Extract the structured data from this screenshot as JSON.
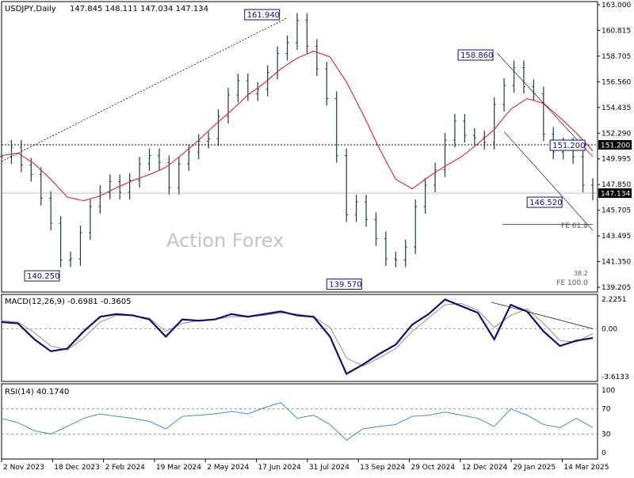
{
  "header": {
    "symbol_label": "USDJPY,Daily",
    "ohlc_label": "147.845 148.111 147.034 147.134"
  },
  "watermark": "Action Forex",
  "colors": {
    "candle": "#1a3a4a",
    "sma": "#e03030",
    "macd_line": "#10107a",
    "macd_signal": "#909090",
    "rsi_line": "#3a8fd0",
    "trendline": "#000000",
    "label_border": "#10107a",
    "background": "#ffffff"
  },
  "chart_data": [
    {
      "type": "line",
      "panel": "price",
      "title": "USDJPY,Daily",
      "ylim": [
        139.205,
        163.0
      ],
      "y_ticks": [
        "163.000",
        "160.815",
        "158.705",
        "156.560",
        "154.435",
        "152.290",
        "149.995",
        "147.850",
        "145.705",
        "143.495",
        "141.350",
        "139.205"
      ],
      "x_ticks": [
        "2 Nov 2023",
        "18 Dec 2023",
        "2 Feb 2024",
        "19 Mar 2024",
        "2 May 2024",
        "17 Jun 2024",
        "31 Jul 2024",
        "13 Sep 2024",
        "29 Oct 2024",
        "12 Dec 2024",
        "29 Jan 2025",
        "14 Mar 2025"
      ],
      "series": [
        {
          "style": "bars",
          "x": [
            0,
            6,
            12,
            18,
            24,
            30,
            36,
            42,
            48,
            54,
            60,
            66,
            72,
            78,
            84,
            90,
            96,
            102,
            108,
            114,
            120,
            126,
            132,
            138,
            144,
            150,
            156,
            162,
            168,
            174,
            180,
            186,
            192,
            198,
            204,
            210,
            216,
            222,
            228,
            234,
            240,
            246,
            252,
            258,
            264,
            270,
            276,
            282,
            288,
            294,
            300,
            306,
            312,
            318,
            324,
            330,
            336,
            342,
            348,
            354,
            360
          ],
          "values": [
            150.2,
            151.0,
            149.5,
            148.7,
            146.7,
            144.6,
            141.5,
            141.6,
            143.8,
            146.0,
            147.2,
            148.1,
            147.2,
            148.2,
            149.6,
            150.3,
            149.7,
            147.6,
            149.6,
            150.6,
            151.5,
            151.7,
            153.6,
            155.4,
            156.6,
            155.5,
            155.9,
            157.3,
            158.9,
            159.8,
            161.7,
            159.5,
            157.6,
            155.1,
            150.3,
            145.3,
            146.4,
            144.9,
            143.3,
            141.6,
            141.5,
            142.6,
            146.0,
            147.8,
            149.1,
            151.6,
            153.2,
            152.0,
            151.8,
            151.4,
            154.6,
            156.2,
            157.7,
            156.1,
            155.5,
            152.1,
            150.6,
            151.2,
            150.2,
            147.8,
            147.134
          ]
        },
        {
          "name": "",
          "style": "moving-average",
          "x": [
            0,
            10,
            20,
            30,
            40,
            50,
            60,
            70,
            80,
            90,
            100,
            110,
            120,
            130,
            140,
            150,
            160,
            170,
            180,
            190,
            200,
            210,
            220,
            230,
            240,
            250,
            260,
            270,
            280,
            290,
            300,
            310,
            320,
            330,
            340,
            350,
            360
          ],
          "values": [
            150.3,
            150.5,
            149.6,
            148.3,
            146.8,
            146.5,
            146.9,
            147.6,
            148.2,
            148.7,
            149.3,
            150.4,
            151.6,
            152.9,
            154.1,
            155.4,
            156.4,
            157.6,
            158.5,
            159.1,
            158.6,
            156.5,
            153.8,
            150.9,
            148.3,
            147.5,
            148.5,
            149.4,
            150.2,
            151.3,
            152.5,
            154.2,
            155.1,
            154.7,
            153.5,
            152.2,
            150.7
          ]
        }
      ],
      "annotations": {
        "price_labels": [
          "161.940",
          "158.860",
          "151.200",
          "146.520",
          "140.250",
          "139.570"
        ],
        "fib_labels": [
          "FE 61.8",
          "FE 100.0",
          "38.2"
        ],
        "horizontal_levels": [
          151.2,
          147.134
        ],
        "current_price": "147.134",
        "level_label": "151.200"
      }
    },
    {
      "type": "line",
      "panel": "macd",
      "title": "MACD(12,26,9) -0.6981 -0.3605",
      "ylim": [
        -3.6133,
        2.2251
      ],
      "y_ticks": [
        "2.2251",
        "0.00",
        "-3.6133"
      ],
      "series": [
        {
          "name": "",
          "x": [
            0,
            10,
            20,
            30,
            40,
            50,
            60,
            70,
            80,
            90,
            100,
            110,
            120,
            130,
            140,
            150,
            160,
            170,
            180,
            190,
            200,
            210,
            220,
            230,
            240,
            250,
            260,
            270,
            280,
            290,
            300,
            310,
            320,
            330,
            340,
            350,
            360
          ],
          "values": [
            0.5,
            0.4,
            -0.8,
            -1.7,
            -1.5,
            -0.2,
            0.9,
            1.1,
            1.0,
            0.7,
            -0.6,
            0.7,
            0.6,
            0.7,
            1.1,
            0.9,
            1.1,
            1.3,
            1.0,
            0.9,
            -0.6,
            -3.4,
            -2.7,
            -1.9,
            -1.2,
            0.3,
            1.1,
            2.2,
            1.7,
            1.2,
            -0.8,
            1.8,
            1.3,
            -0.2,
            -1.3,
            -0.9,
            -0.6981
          ]
        },
        {
          "name": "",
          "x": [
            0,
            10,
            20,
            30,
            40,
            50,
            60,
            70,
            80,
            90,
            100,
            110,
            120,
            130,
            140,
            150,
            160,
            170,
            180,
            190,
            200,
            210,
            220,
            230,
            240,
            250,
            260,
            270,
            280,
            290,
            300,
            310,
            320,
            330,
            340,
            350,
            360
          ],
          "values": [
            0.6,
            0.5,
            -0.3,
            -1.3,
            -1.6,
            -0.7,
            0.5,
            1.0,
            1.0,
            0.8,
            -0.2,
            0.4,
            0.6,
            0.7,
            0.9,
            0.9,
            1.0,
            1.2,
            1.1,
            0.9,
            0.1,
            -2.2,
            -2.8,
            -2.2,
            -1.5,
            -0.2,
            0.8,
            1.8,
            1.9,
            1.4,
            0.1,
            1.0,
            1.5,
            0.4,
            -0.9,
            -1.0,
            -0.3605
          ]
        }
      ]
    },
    {
      "type": "line",
      "panel": "rsi",
      "title": "RSI(14) 40.1740",
      "ylim": [
        0,
        100
      ],
      "y_ticks": [
        "100",
        "70",
        "30",
        "0"
      ],
      "reference_lines": [
        70,
        30
      ],
      "series": [
        {
          "name": "",
          "x": [
            0,
            10,
            20,
            30,
            40,
            50,
            60,
            70,
            80,
            90,
            100,
            110,
            120,
            130,
            140,
            150,
            160,
            170,
            180,
            190,
            200,
            210,
            220,
            230,
            240,
            250,
            260,
            270,
            280,
            290,
            300,
            310,
            320,
            330,
            340,
            350,
            360
          ],
          "values": [
            55,
            48,
            35,
            30,
            42,
            55,
            62,
            58,
            55,
            50,
            38,
            58,
            60,
            62,
            66,
            62,
            72,
            80,
            55,
            60,
            45,
            20,
            38,
            42,
            45,
            58,
            60,
            65,
            60,
            55,
            42,
            70,
            60,
            45,
            40,
            55,
            40.174
          ]
        }
      ]
    }
  ]
}
